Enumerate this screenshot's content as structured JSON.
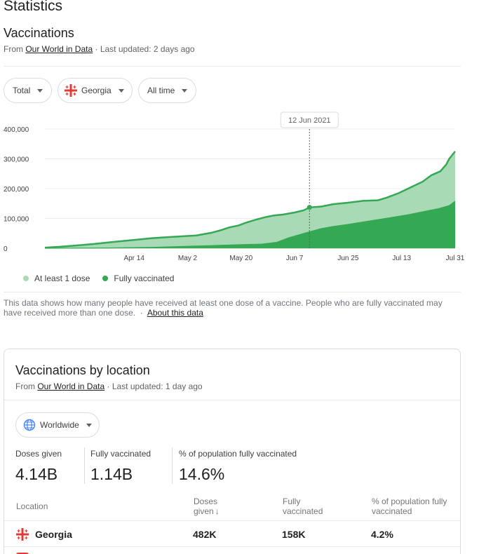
{
  "header": {
    "title": "Statistics"
  },
  "vaccinations": {
    "title": "Vaccinations",
    "source_prefix": "From",
    "source_name": "Our World in Data",
    "updated": "· Last updated: 2 days ago",
    "filters": {
      "metric": "Total",
      "country": "Georgia",
      "range": "All time"
    },
    "tooltip_date": "12 Jun 2021",
    "legend": {
      "first": "At least 1 dose",
      "second": "Fully vaccinated"
    },
    "note": "This data shows how many people have received at least one dose of a vaccine. People who are fully vaccinated may have received more than one dose.",
    "note_sep": "·",
    "about_link": "About this data"
  },
  "chart_data": {
    "type": "area",
    "x_ticks": [
      "Apr 14",
      "May 2",
      "May 20",
      "Jun 7",
      "Jun 25",
      "Jul 13",
      "Jul 31"
    ],
    "y_ticks": [
      "0",
      "100,000",
      "200,000",
      "300,000",
      "400,000"
    ],
    "ylim": [
      0,
      400000
    ],
    "x_start": "2021-03-15",
    "x_end": "2021-07-31",
    "highlight_date": "2021-06-12",
    "series": [
      {
        "name": "At least 1 dose",
        "color": "#a8dab5",
        "line_color": "#34a853",
        "points": [
          [
            "2021-03-15",
            2000
          ],
          [
            "2021-03-20",
            5000
          ],
          [
            "2021-03-25",
            9000
          ],
          [
            "2021-03-31",
            14000
          ],
          [
            "2021-04-05",
            19000
          ],
          [
            "2021-04-10",
            24000
          ],
          [
            "2021-04-15",
            29000
          ],
          [
            "2021-04-20",
            34000
          ],
          [
            "2021-04-25",
            37000
          ],
          [
            "2021-04-30",
            40000
          ],
          [
            "2021-05-05",
            43000
          ],
          [
            "2021-05-10",
            52000
          ],
          [
            "2021-05-13",
            60000
          ],
          [
            "2021-05-16",
            70000
          ],
          [
            "2021-05-19",
            76000
          ],
          [
            "2021-05-22",
            87000
          ],
          [
            "2021-05-25",
            96000
          ],
          [
            "2021-05-28",
            104000
          ],
          [
            "2021-05-31",
            110000
          ],
          [
            "2021-06-03",
            113000
          ],
          [
            "2021-06-07",
            120000
          ],
          [
            "2021-06-10",
            127000
          ],
          [
            "2021-06-12",
            137000
          ],
          [
            "2021-06-16",
            140000
          ],
          [
            "2021-06-20",
            148000
          ],
          [
            "2021-06-25",
            153000
          ],
          [
            "2021-06-30",
            159000
          ],
          [
            "2021-07-05",
            161000
          ],
          [
            "2021-07-08",
            170000
          ],
          [
            "2021-07-12",
            185000
          ],
          [
            "2021-07-16",
            204000
          ],
          [
            "2021-07-20",
            223000
          ],
          [
            "2021-07-23",
            245000
          ],
          [
            "2021-07-26",
            258000
          ],
          [
            "2021-07-28",
            281000
          ],
          [
            "2021-07-29",
            300000
          ],
          [
            "2021-07-31",
            325000
          ]
        ]
      },
      {
        "name": "Fully vaccinated",
        "color": "#34a853",
        "line_color": "#34a853",
        "points": [
          [
            "2021-03-15",
            0
          ],
          [
            "2021-04-05",
            1000
          ],
          [
            "2021-04-20",
            3000
          ],
          [
            "2021-05-01",
            6000
          ],
          [
            "2021-05-10",
            9000
          ],
          [
            "2021-05-20",
            12000
          ],
          [
            "2021-05-27",
            14000
          ],
          [
            "2021-06-01",
            20000
          ],
          [
            "2021-06-05",
            35000
          ],
          [
            "2021-06-12",
            55000
          ],
          [
            "2021-06-16",
            66000
          ],
          [
            "2021-06-20",
            73000
          ],
          [
            "2021-06-25",
            80000
          ],
          [
            "2021-06-30",
            88000
          ],
          [
            "2021-07-05",
            96000
          ],
          [
            "2021-07-10",
            104000
          ],
          [
            "2021-07-15",
            112000
          ],
          [
            "2021-07-20",
            122000
          ],
          [
            "2021-07-25",
            132000
          ],
          [
            "2021-07-29",
            143000
          ],
          [
            "2021-07-31",
            158000
          ]
        ]
      }
    ]
  },
  "by_location": {
    "title": "Vaccinations by location",
    "source_prefix": "From",
    "source_name": "Our World in Data",
    "updated": "· Last updated: 1 day ago",
    "region_filter": "Worldwide",
    "stats": [
      {
        "label": "Doses given",
        "value": "4.14B"
      },
      {
        "label": "Fully vaccinated",
        "value": "1.14B"
      },
      {
        "label": "% of population fully vaccinated",
        "value": "14.6%"
      }
    ],
    "columns": {
      "location": "Location",
      "doses_line1": "Doses",
      "doses_line2": "given",
      "fully_line1": "Fully",
      "fully_line2": "vaccinated",
      "pct_line1": "% of population fully",
      "pct_line2": "vaccinated"
    },
    "rows": [
      {
        "location": "Georgia",
        "doses": "482K",
        "fully": "158K",
        "pct": "4.2%"
      }
    ]
  },
  "colors": {
    "flag_red": "#e53935",
    "accent_green": "#34a853",
    "light_green": "#a8dab5"
  }
}
